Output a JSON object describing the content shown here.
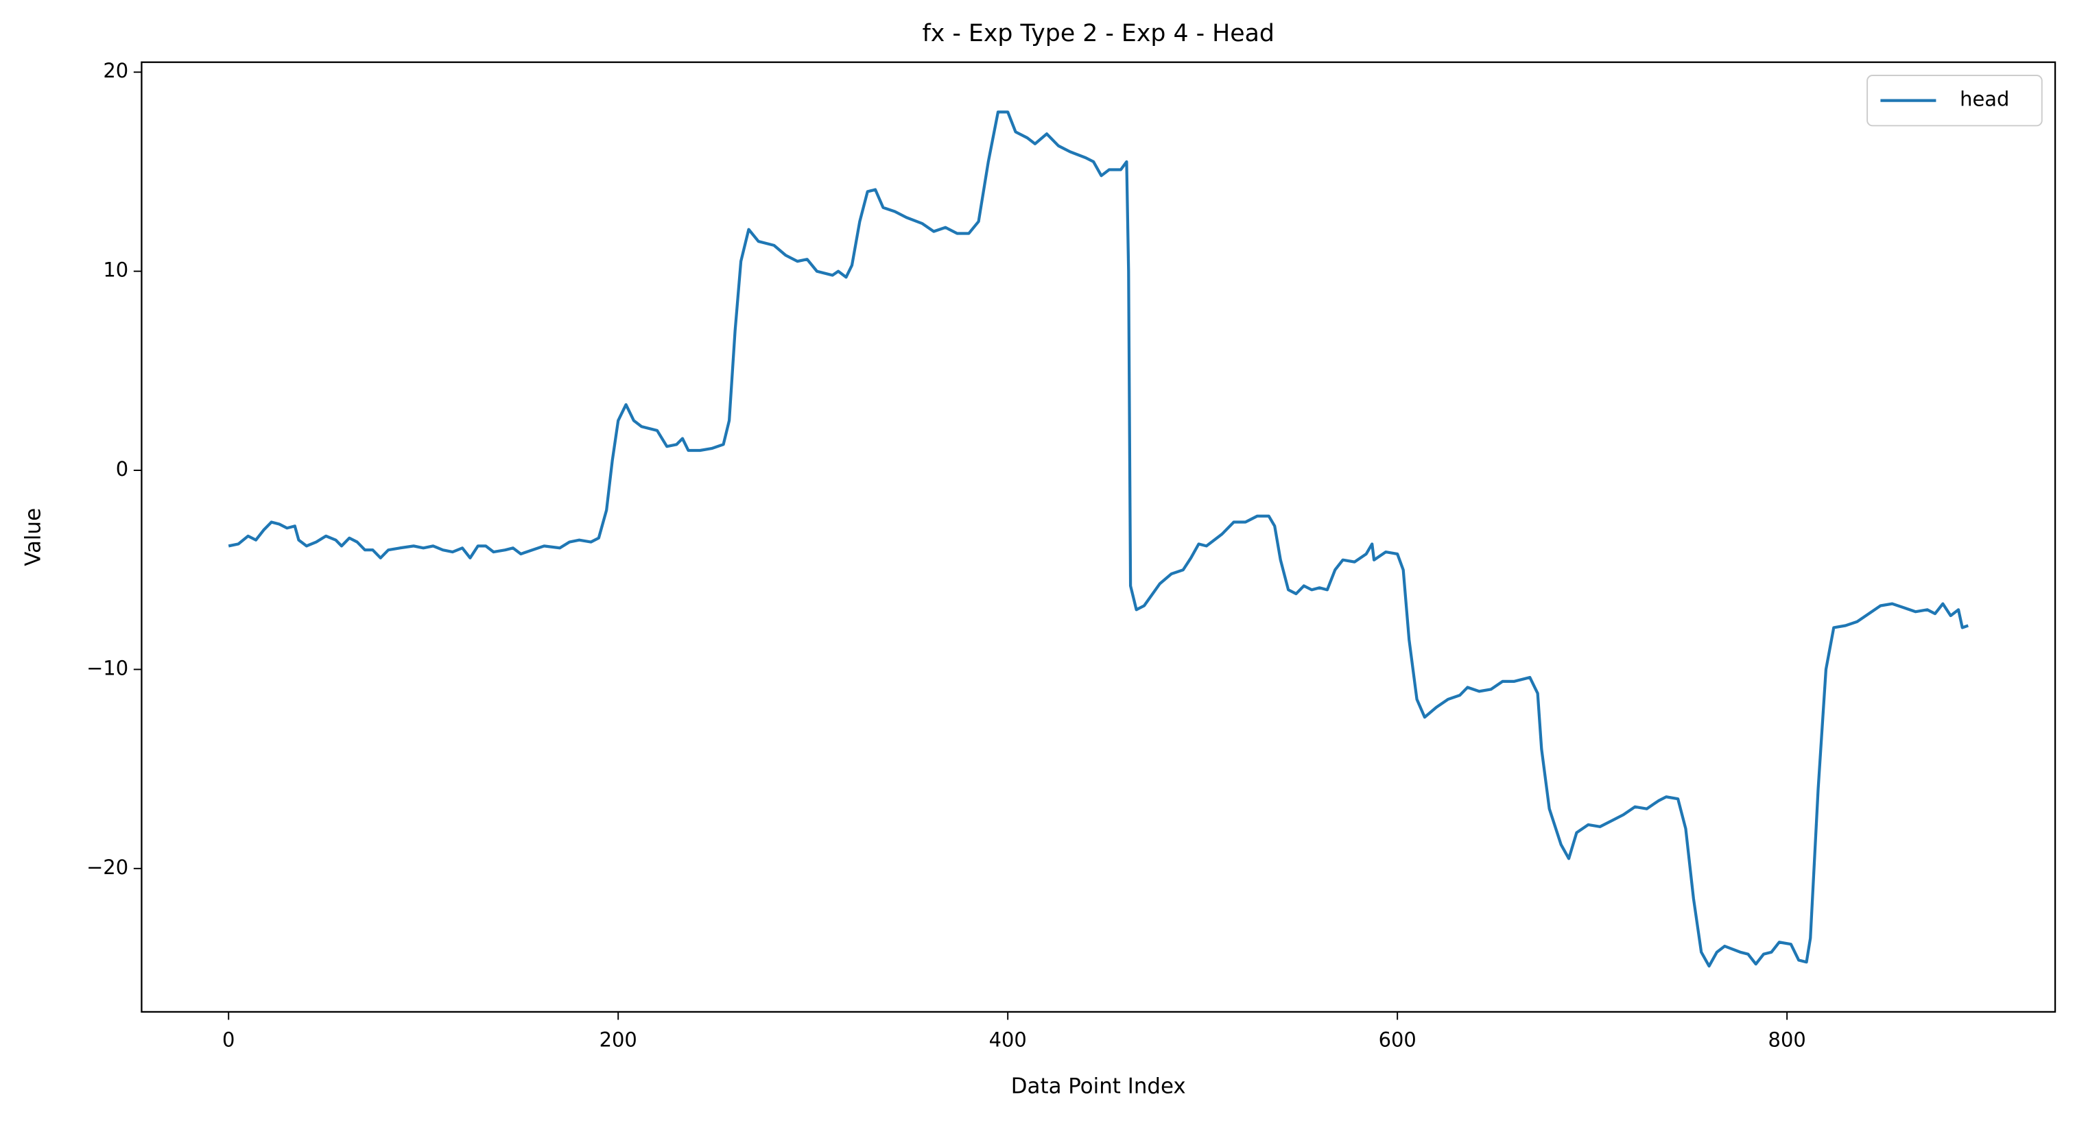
{
  "chart_data": {
    "type": "line",
    "title": "fx - Exp Type 2 - Exp 4 - Head",
    "xlabel": "Data Point Index",
    "ylabel": "Value",
    "x": [
      0,
      5,
      10,
      14,
      18,
      22,
      26,
      30,
      34,
      36,
      40,
      45,
      50,
      55,
      58,
      62,
      66,
      70,
      74,
      78,
      82,
      88,
      95,
      100,
      105,
      110,
      115,
      120,
      124,
      128,
      132,
      136,
      142,
      146,
      150,
      156,
      162,
      170,
      175,
      180,
      186,
      190,
      194,
      197,
      200,
      204,
      208,
      212,
      220,
      225,
      230,
      233,
      236,
      242,
      248,
      254,
      257,
      260,
      263,
      267,
      272,
      280,
      286,
      292,
      297,
      302,
      310,
      313,
      317,
      320,
      324,
      328,
      332,
      336,
      342,
      348,
      356,
      362,
      368,
      374,
      380,
      385,
      390,
      395,
      400,
      404,
      410,
      414,
      420,
      426,
      432,
      440,
      444,
      448,
      452,
      458,
      461,
      462,
      463,
      466,
      470,
      478,
      484,
      490,
      494,
      498,
      502,
      510,
      516,
      522,
      528,
      534,
      537,
      540,
      544,
      548,
      552,
      556,
      560,
      564,
      568,
      572,
      578,
      584,
      587,
      588,
      594,
      600,
      603,
      606,
      610,
      614,
      620,
      626,
      632,
      636,
      642,
      648,
      654,
      660,
      664,
      668,
      672,
      674,
      678,
      684,
      688,
      692,
      698,
      704,
      710,
      716,
      722,
      728,
      734,
      738,
      744,
      748,
      752,
      756,
      760,
      764,
      768,
      776,
      780,
      784,
      788,
      792,
      796,
      802,
      806,
      810,
      812,
      816,
      820,
      824,
      830,
      836,
      842,
      848,
      854,
      860,
      866,
      872,
      876,
      880,
      884,
      888,
      890,
      893
    ],
    "series": [
      {
        "name": "head",
        "color": "#1f77b4",
        "values": [
          -3.8,
          -3.7,
          -3.3,
          -3.5,
          -3.0,
          -2.6,
          -2.7,
          -2.9,
          -2.8,
          -3.5,
          -3.8,
          -3.6,
          -3.3,
          -3.5,
          -3.8,
          -3.4,
          -3.6,
          -4.0,
          -4.0,
          -4.4,
          -4.0,
          -3.9,
          -3.8,
          -3.9,
          -3.8,
          -4.0,
          -4.1,
          -3.9,
          -4.4,
          -3.8,
          -3.8,
          -4.1,
          -4.0,
          -3.9,
          -4.2,
          -4.0,
          -3.8,
          -3.9,
          -3.6,
          -3.5,
          -3.6,
          -3.4,
          -2.0,
          0.5,
          2.5,
          3.3,
          2.5,
          2.2,
          2.0,
          1.2,
          1.3,
          1.6,
          1.0,
          1.0,
          1.1,
          1.3,
          2.5,
          7.0,
          10.5,
          12.1,
          11.5,
          11.3,
          10.8,
          10.5,
          10.6,
          10.0,
          9.8,
          10.0,
          9.7,
          10.3,
          12.5,
          14.0,
          14.1,
          13.2,
          13.0,
          12.7,
          12.4,
          12.0,
          12.2,
          11.9,
          11.9,
          12.5,
          15.5,
          18.0,
          18.0,
          17.0,
          16.7,
          16.4,
          16.9,
          16.3,
          16.0,
          15.7,
          15.5,
          14.8,
          15.1,
          15.1,
          15.5,
          10.0,
          -5.8,
          -7.0,
          -6.8,
          -5.7,
          -5.2,
          -5.0,
          -4.4,
          -3.7,
          -3.8,
          -3.2,
          -2.6,
          -2.6,
          -2.3,
          -2.3,
          -2.8,
          -4.5,
          -6.0,
          -6.2,
          -5.8,
          -6.0,
          -5.9,
          -6.0,
          -5.0,
          -4.5,
          -4.6,
          -4.2,
          -3.7,
          -4.5,
          -4.1,
          -4.2,
          -5.0,
          -8.5,
          -11.5,
          -12.4,
          -11.9,
          -11.5,
          -11.3,
          -10.9,
          -11.1,
          -11.0,
          -10.6,
          -10.6,
          -10.5,
          -10.4,
          -11.2,
          -14.0,
          -17.0,
          -18.8,
          -19.5,
          -18.2,
          -17.8,
          -17.9,
          -17.6,
          -17.3,
          -16.9,
          -17.0,
          -16.6,
          -16.4,
          -16.5,
          -18.0,
          -21.5,
          -24.2,
          -24.9,
          -24.2,
          -23.9,
          -24.2,
          -24.3,
          -24.8,
          -24.3,
          -24.2,
          -23.7,
          -23.8,
          -24.6,
          -24.7,
          -23.5,
          -16.0,
          -10.0,
          -7.9,
          -7.8,
          -7.6,
          -7.2,
          -6.8,
          -6.7,
          -6.9,
          -7.1,
          -7.0,
          -7.2,
          -6.7,
          -7.3,
          -7.0,
          -7.9,
          -7.8
        ]
      }
    ],
    "xlim": [
      -44.65,
      937.65
    ],
    "ylim": [
      -27.2,
      20.5
    ],
    "xticks": [
      0,
      200,
      400,
      600,
      800
    ],
    "yticks": [
      {
        "value": -20,
        "label": "−20"
      },
      {
        "value": -10,
        "label": "−10"
      },
      0,
      10,
      20
    ],
    "legend": "upper right"
  }
}
